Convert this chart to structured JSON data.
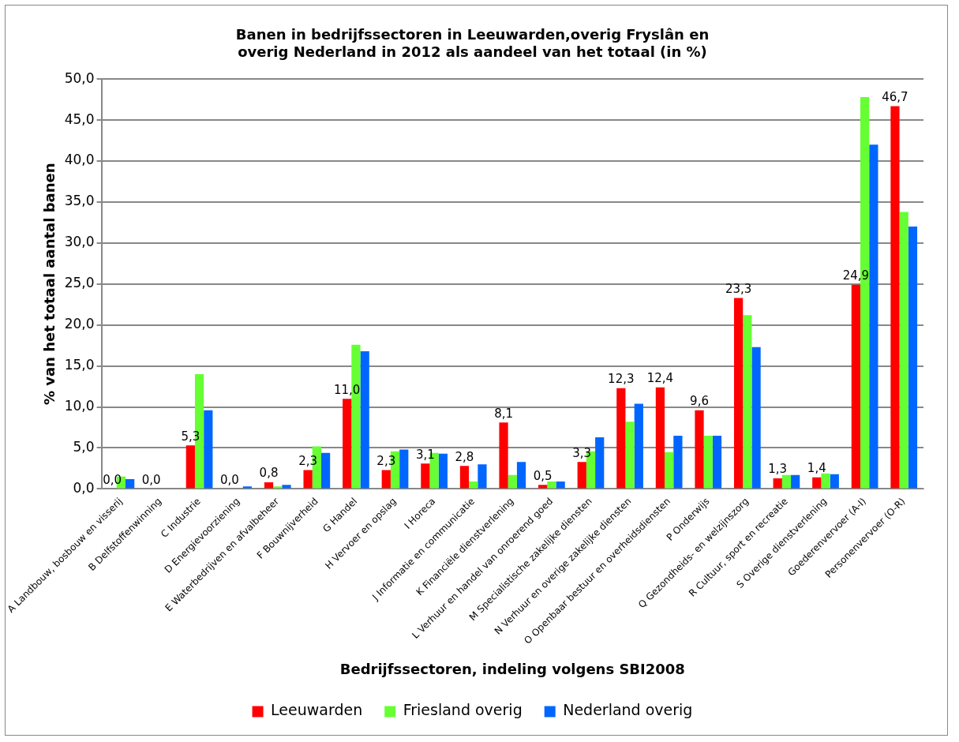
{
  "chart_data": {
    "type": "bar",
    "title": "Banen in bedrijfssectoren in Leeuwarden,overig Fryslân en overig Nederland in 2012 als aandeel van het totaal (in %)",
    "xlabel": "Bedrijfssectoren, indeling volgens SBI2008",
    "ylabel": "% van het totaal aantal banen",
    "categories": [
      "A Landbouw, bosbouw en visserij",
      "B Delfstoffenwinning",
      "C Industrie",
      "D Energievoorziening",
      "E Waterbedrijven en afvalbeheer",
      "F Bouwnijverheid",
      "G Handel",
      "H Vervoer en opslag",
      "I Horeca",
      "J Informatie en communicatie",
      "K Financiële dienstverlening",
      "L Verhuur en handel van onroerend goed",
      "M Specialistische zakelijke diensten",
      "N Verhuur en overige zakelijke diensten",
      "O Openbaar bestuur en overheidsdiensten",
      "P Onderwijs",
      "Q Gezondheids- en welzijnszorg",
      "R Cultuur, sport en recreatie",
      "S Overige dienstverlening",
      "Goederenvervoer (A-I)",
      "Personenvervoer (O-R)"
    ],
    "series": [
      {
        "name": "Leeuwarden",
        "color": "#ff0000",
        "values": [
          0.0,
          0.0,
          5.3,
          0.0,
          0.8,
          2.3,
          11.0,
          2.3,
          3.1,
          2.8,
          8.1,
          0.5,
          3.3,
          12.3,
          12.4,
          9.6,
          23.3,
          1.3,
          1.4,
          24.9,
          46.7
        ],
        "value_labels": [
          "0,0",
          "0,0",
          "5,3",
          "0,0",
          "0,8",
          "2,3",
          "11,0",
          "2,3",
          "3,1",
          "2,8",
          "8,1",
          "0,5",
          "3,3",
          "12,3",
          "12,4",
          "9,6",
          "23,3",
          "1,3",
          "1,4",
          "24,9",
          "46,7"
        ]
      },
      {
        "name": "Friesland overig",
        "color": "#66ff33",
        "values": [
          1.5,
          0,
          14.0,
          0,
          0.3,
          5.2,
          17.6,
          4.6,
          4.4,
          0.9,
          1.7,
          0.9,
          4.6,
          8.2,
          4.5,
          6.5,
          21.2,
          1.7,
          1.9,
          47.8,
          33.8
        ]
      },
      {
        "name": "Nederland overig",
        "color": "#0066ff",
        "values": [
          1.2,
          0,
          9.6,
          0.3,
          0.5,
          4.4,
          16.8,
          4.8,
          4.3,
          3.0,
          3.3,
          0.9,
          6.3,
          10.4,
          6.5,
          6.5,
          17.3,
          1.7,
          1.8,
          42.0,
          32.0
        ]
      }
    ],
    "ylim": [
      0,
      50
    ],
    "yticks": [
      {
        "value": 0,
        "label": "0,0"
      },
      {
        "value": 5,
        "label": "5,0"
      },
      {
        "value": 10,
        "label": "10,0"
      },
      {
        "value": 15,
        "label": "15,0"
      },
      {
        "value": 20,
        "label": "20,0"
      },
      {
        "value": 25,
        "label": "25,0"
      },
      {
        "value": 30,
        "label": "30,0"
      },
      {
        "value": 35,
        "label": "35,0"
      },
      {
        "value": 40,
        "label": "40,0"
      },
      {
        "value": 45,
        "label": "45,0"
      },
      {
        "value": 50,
        "label": "50,0"
      }
    ],
    "grid": "y",
    "legend": "bottom"
  }
}
